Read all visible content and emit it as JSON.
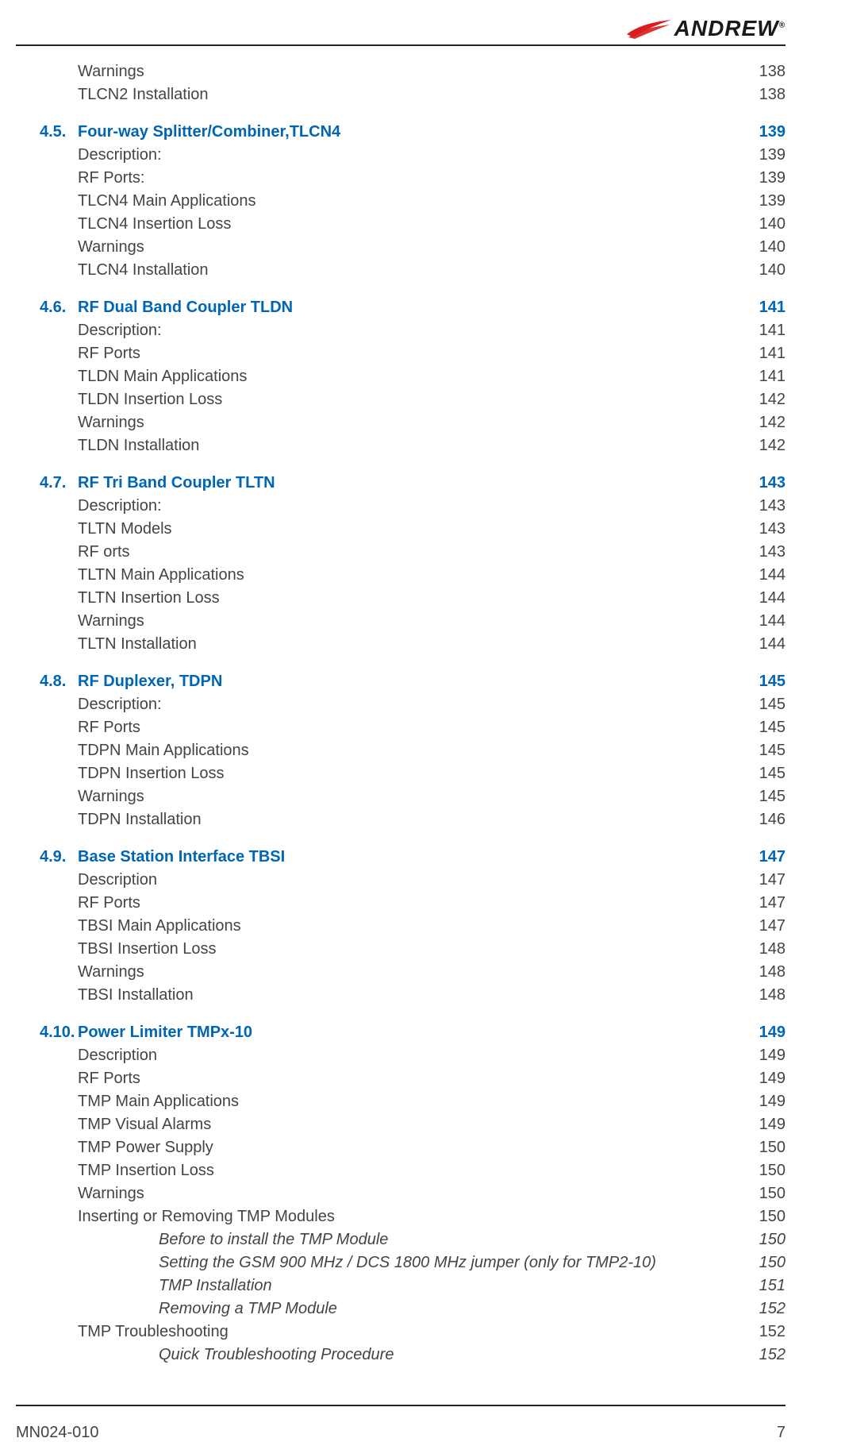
{
  "logo": {
    "text": "ANDREW",
    "reg": "®"
  },
  "colors": {
    "heading": "#0066b3",
    "body": "#444444",
    "rule": "#222222",
    "bg": "#ffffff",
    "swoosh": "#d91c1c"
  },
  "typography": {
    "body_fontsize": 20,
    "logo_fontsize": 28
  },
  "footer": {
    "doc_id": "MN024-010",
    "page_no": "7"
  },
  "sections": [
    {
      "heading": null,
      "items": [
        {
          "level": "sub",
          "label": "Warnings",
          "page": "138"
        },
        {
          "level": "sub",
          "label": "TLCN2 Installation",
          "page": "138"
        }
      ]
    },
    {
      "heading": {
        "num": "4.5.",
        "label": "Four-way Splitter/Combiner,TLCN4",
        "page": "139"
      },
      "items": [
        {
          "level": "sub",
          "label": "Description:",
          "page": "139"
        },
        {
          "level": "sub",
          "label": "RF Ports:",
          "page": "139"
        },
        {
          "level": "sub",
          "label": "TLCN4 Main Applications",
          "page": "139"
        },
        {
          "level": "sub",
          "label": "TLCN4 Insertion Loss",
          "page": "140"
        },
        {
          "level": "sub",
          "label": "Warnings",
          "page": "140"
        },
        {
          "level": "sub",
          "label": "TLCN4 Installation",
          "page": "140"
        }
      ]
    },
    {
      "heading": {
        "num": "4.6.",
        "label": "RF Dual Band Coupler TLDN",
        "page": "141"
      },
      "items": [
        {
          "level": "sub",
          "label": "Description:",
          "page": "141"
        },
        {
          "level": "sub",
          "label": "RF Ports",
          "page": "141"
        },
        {
          "level": "sub",
          "label": "TLDN Main Applications",
          "page": "141"
        },
        {
          "level": "sub",
          "label": "TLDN Insertion Loss",
          "page": "142"
        },
        {
          "level": "sub",
          "label": "Warnings",
          "page": "142"
        },
        {
          "level": "sub",
          "label": "TLDN Installation",
          "page": "142"
        }
      ]
    },
    {
      "heading": {
        "num": "4.7.",
        "label": "RF Tri Band Coupler TLTN",
        "page": "143"
      },
      "items": [
        {
          "level": "sub",
          "label": "Description:",
          "page": "143"
        },
        {
          "level": "sub",
          "label": "TLTN Models",
          "page": "143"
        },
        {
          "level": "sub",
          "label": "RF orts",
          "page": "143"
        },
        {
          "level": "sub",
          "label": "TLTN Main Applications",
          "page": "144"
        },
        {
          "level": "sub",
          "label": "TLTN Insertion Loss",
          "page": "144"
        },
        {
          "level": "sub",
          "label": "Warnings",
          "page": "144"
        },
        {
          "level": "sub",
          "label": "TLTN Installation",
          "page": "144"
        }
      ]
    },
    {
      "heading": {
        "num": "4.8.",
        "label": "RF Duplexer, TDPN",
        "page": "145"
      },
      "items": [
        {
          "level": "sub",
          "label": "Description:",
          "page": "145"
        },
        {
          "level": "sub",
          "label": "RF Ports",
          "page": "145"
        },
        {
          "level": "sub",
          "label": "TDPN Main Applications",
          "page": "145"
        },
        {
          "level": "sub",
          "label": "TDPN Insertion Loss",
          "page": "145"
        },
        {
          "level": "sub",
          "label": "Warnings",
          "page": "145"
        },
        {
          "level": "sub",
          "label": "TDPN Installation",
          "page": "146"
        }
      ]
    },
    {
      "heading": {
        "num": "4.9.",
        "label": "Base Station Interface TBSI",
        "page": "147"
      },
      "items": [
        {
          "level": "sub",
          "label": "Description",
          "page": "147"
        },
        {
          "level": "sub",
          "label": "RF Ports",
          "page": "147"
        },
        {
          "level": "sub",
          "label": "TBSI Main Applications",
          "page": "147"
        },
        {
          "level": "sub",
          "label": "TBSI Insertion Loss",
          "page": "148"
        },
        {
          "level": "sub",
          "label": "Warnings",
          "page": "148"
        },
        {
          "level": "sub",
          "label": "TBSI Installation",
          "page": "148"
        }
      ]
    },
    {
      "heading": {
        "num": "4.10.",
        "label": "Power Limiter TMPx-10",
        "page": "149"
      },
      "items": [
        {
          "level": "sub",
          "label": "Description",
          "page": "149"
        },
        {
          "level": "sub",
          "label": "RF Ports",
          "page": "149"
        },
        {
          "level": "sub",
          "label": "TMP Main Applications",
          "page": "149"
        },
        {
          "level": "sub",
          "label": "TMP Visual Alarms",
          "page": "149"
        },
        {
          "level": "sub",
          "label": "TMP Power Supply",
          "page": "150"
        },
        {
          "level": "sub",
          "label": "TMP Insertion Loss",
          "page": "150"
        },
        {
          "level": "sub",
          "label": "Warnings",
          "page": "150"
        },
        {
          "level": "sub",
          "label": "Inserting or Removing TMP Modules",
          "page": "150"
        },
        {
          "level": "subsub",
          "label": "Before to install the TMP Module",
          "page": "150"
        },
        {
          "level": "subsub",
          "label": "Setting the GSM 900 MHz / DCS 1800 MHz jumper (only for TMP2-10)",
          "page": "150"
        },
        {
          "level": "subsub",
          "label": "TMP Installation",
          "page": "151"
        },
        {
          "level": "subsub",
          "label": "Removing a TMP Module",
          "page": "152"
        },
        {
          "level": "sub",
          "label": "TMP Troubleshooting",
          "page": "152"
        },
        {
          "level": "subsub",
          "label": "Quick Troubleshooting Procedure",
          "page": "152"
        }
      ]
    }
  ]
}
